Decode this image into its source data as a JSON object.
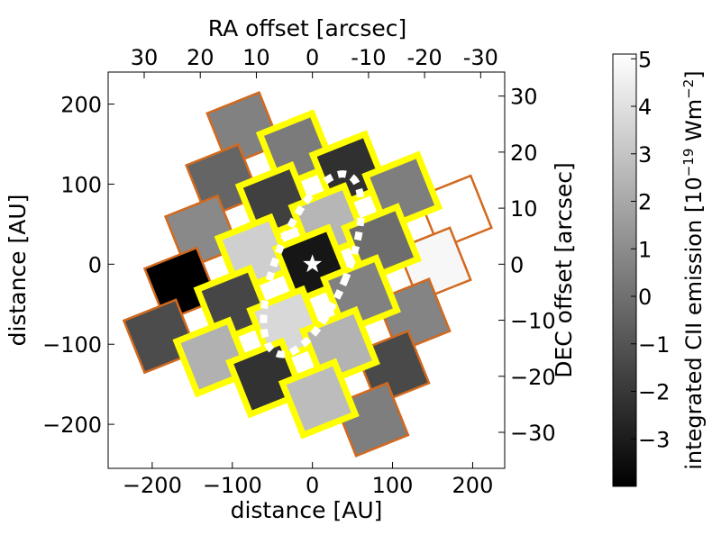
{
  "chart_data": {
    "type": "heatmap",
    "xlabel": "distance [AU]",
    "ylabel": "distance [AU]",
    "top_xlabel": "RA offset [arcsec]",
    "right_ylabel": "DEC offset [arcsec]",
    "xlim": [
      -255,
      240
    ],
    "ylim": [
      -255,
      240
    ],
    "x_ticks": [
      -200,
      -100,
      0,
      100,
      200
    ],
    "y_ticks": [
      -200,
      -100,
      0,
      100,
      200
    ],
    "x_tick_labels": [
      "−200",
      "−100",
      "0",
      "100",
      "200"
    ],
    "y_tick_labels": [
      "−200",
      "−100",
      "0",
      "100",
      "200"
    ],
    "top_ticks": [
      30,
      20,
      10,
      0,
      -10,
      -20,
      -30
    ],
    "top_tick_labels": [
      "30",
      "20",
      "10",
      "0",
      "-10",
      "-20",
      "-30"
    ],
    "right_ticks": [
      30,
      20,
      10,
      0,
      -10,
      -20,
      -30
    ],
    "right_tick_labels": [
      "30",
      "20",
      "10",
      "0",
      "−10",
      "−20",
      "−30"
    ],
    "arcsec_to_au": 7.0,
    "grid": false,
    "colorbar": {
      "label": "integrated CII emission [10",
      "label_exp": "−19",
      "label_unit": " Wm",
      "label_unit_exp": "−2",
      "label_close": "]",
      "min": -4.0,
      "max": 5.1,
      "ticks": [
        5,
        4,
        3,
        2,
        1,
        0,
        -1,
        -2,
        -3
      ],
      "tick_labels": [
        "5",
        "4",
        "3",
        "2",
        "1",
        "0",
        "−1",
        "−2",
        "−3"
      ]
    },
    "pixels": [
      {
        "x": -86,
        "y": 169,
        "value": 0.6,
        "region": "outer"
      },
      {
        "x": -112,
        "y": 104,
        "value": -0.4,
        "region": "outer"
      },
      {
        "x": -138,
        "y": 40,
        "value": 0.9,
        "region": "outer"
      },
      {
        "x": -164,
        "y": -25,
        "value": -4.0,
        "region": "outer"
      },
      {
        "x": -190,
        "y": -90,
        "value": -1.3,
        "region": "outer"
      },
      {
        "x": -20,
        "y": 143,
        "value": 0.4,
        "region": "inner"
      },
      {
        "x": -46,
        "y": 78,
        "value": -1.7,
        "region": "inner"
      },
      {
        "x": -72,
        "y": 13,
        "value": 3.4,
        "region": "inner"
      },
      {
        "x": -98,
        "y": -51,
        "value": -1.5,
        "region": "inner"
      },
      {
        "x": -124,
        "y": -116,
        "value": 2.3,
        "region": "inner"
      },
      {
        "x": 46,
        "y": 117,
        "value": -2.3,
        "region": "inner"
      },
      {
        "x": 20,
        "y": 52,
        "value": 2.5,
        "region": "inner"
      },
      {
        "x": 0,
        "y": 0,
        "value": -3.2,
        "region": "inner"
      },
      {
        "x": -32,
        "y": -77,
        "value": 3.7,
        "region": "inner"
      },
      {
        "x": -58,
        "y": -142,
        "value": -2.2,
        "region": "inner"
      },
      {
        "x": 112,
        "y": 91,
        "value": 0.5,
        "region": "inner"
      },
      {
        "x": 86,
        "y": 26,
        "value": -0.1,
        "region": "inner"
      },
      {
        "x": 60,
        "y": -38,
        "value": 0.6,
        "region": "inner"
      },
      {
        "x": 34,
        "y": -103,
        "value": 2.4,
        "region": "inner"
      },
      {
        "x": 8,
        "y": -168,
        "value": 2.7,
        "region": "inner"
      },
      {
        "x": 178,
        "y": 65,
        "value": 5.1,
        "region": "outer"
      },
      {
        "x": 152,
        "y": 0,
        "value": 4.8,
        "region": "outer"
      },
      {
        "x": 126,
        "y": -64,
        "value": 0.7,
        "region": "outer"
      },
      {
        "x": 100,
        "y": -129,
        "value": -1.4,
        "region": "outer"
      },
      {
        "x": 74,
        "y": -194,
        "value": 0.5,
        "region": "outer"
      }
    ],
    "pixel_size": 70,
    "rotation_deg": -21.8,
    "colors": {
      "outer_border": "#d2691e",
      "inner_border": "#ffff00",
      "ellipse": "#ffffff",
      "star": "#ffffff"
    }
  }
}
